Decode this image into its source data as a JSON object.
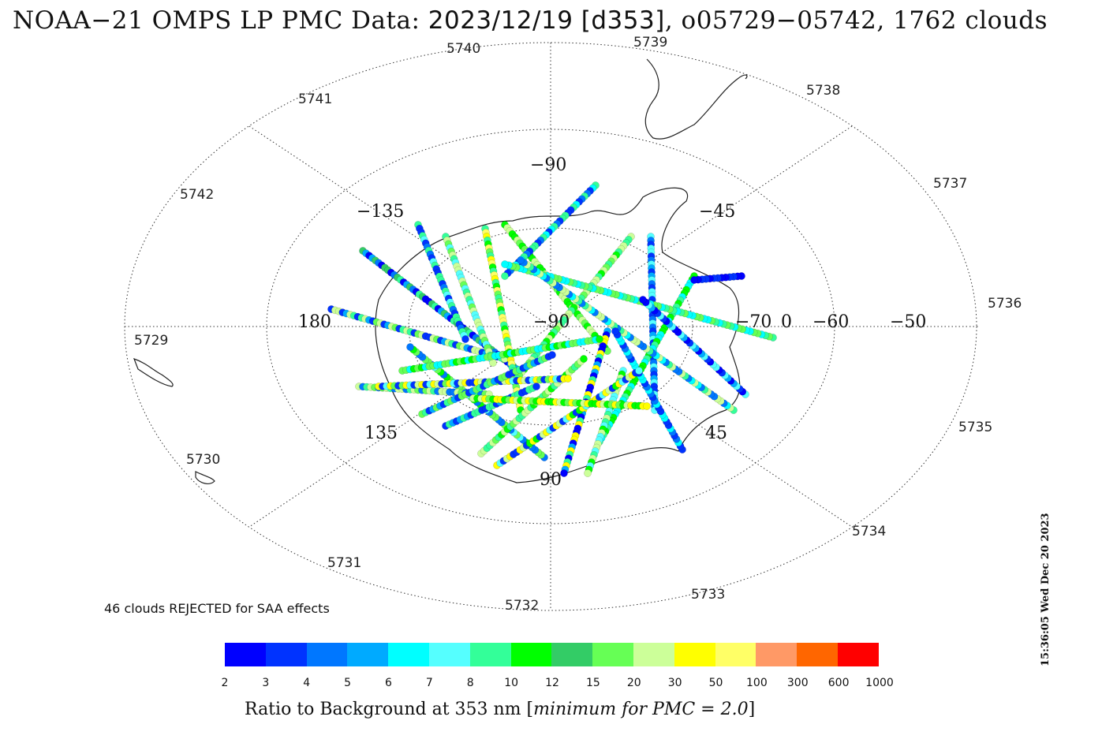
{
  "title": {
    "prefix": "NOAA−21 OMPS LP PMC Data: ",
    "date_code": "2023/12/19 [d353]",
    "suffix": ", o05729−05742, 1762 clouds"
  },
  "orbit_labels": [
    "5729",
    "5730",
    "5731",
    "5732",
    "5733",
    "5734",
    "5735",
    "5736",
    "5737",
    "5738",
    "5739",
    "5740",
    "5741",
    "5742"
  ],
  "longitude_labels": {
    "top": "−90",
    "top_left": "−135",
    "top_right": "−45",
    "left": "180",
    "right": "0",
    "bottom_left": "135",
    "bottom_right": "45",
    "bottom": "90",
    "center": "−90"
  },
  "latitude_labels": [
    "−70",
    "−60",
    "−50"
  ],
  "rejected_note": "46 clouds REJECTED for SAA effects",
  "colorbar": {
    "colors": [
      "#0000ff",
      "#0033ff",
      "#0077ff",
      "#00aaff",
      "#00ffff",
      "#55ffff",
      "#33ff99",
      "#00ff00",
      "#33cc66",
      "#66ff55",
      "#ccff99",
      "#ffff00",
      "#ffff66",
      "#ff9966",
      "#ff6600",
      "#ff0000"
    ],
    "ticks": [
      "2",
      "3",
      "4",
      "5",
      "6",
      "7",
      "8",
      "10",
      "12",
      "15",
      "20",
      "30",
      "50",
      "100",
      "300",
      "600",
      "1000"
    ],
    "caption_main": "Ratio to Background at 353 nm [",
    "caption_italic": "minimum for PMC = 2.0",
    "caption_end": "]"
  },
  "timestamp": "15:36:05 Wed Dec 20 2023",
  "chart_data": {
    "type": "scatter",
    "title": "NOAA−21 OMPS LP PMC Data: 2023/12/19 [d353], o05729−05742, 1762 clouds",
    "projection": "south polar stereographic",
    "orbits": [
      "5729",
      "5742"
    ],
    "cloud_count": 1762,
    "rejected_count": 46,
    "colorbar_label": "Ratio to Background at 353 nm [minimum for PMC = 2.0]",
    "colorbar_ticks": [
      2,
      3,
      4,
      5,
      6,
      7,
      8,
      10,
      12,
      15,
      20,
      30,
      50,
      100,
      300,
      600,
      1000
    ]
  }
}
